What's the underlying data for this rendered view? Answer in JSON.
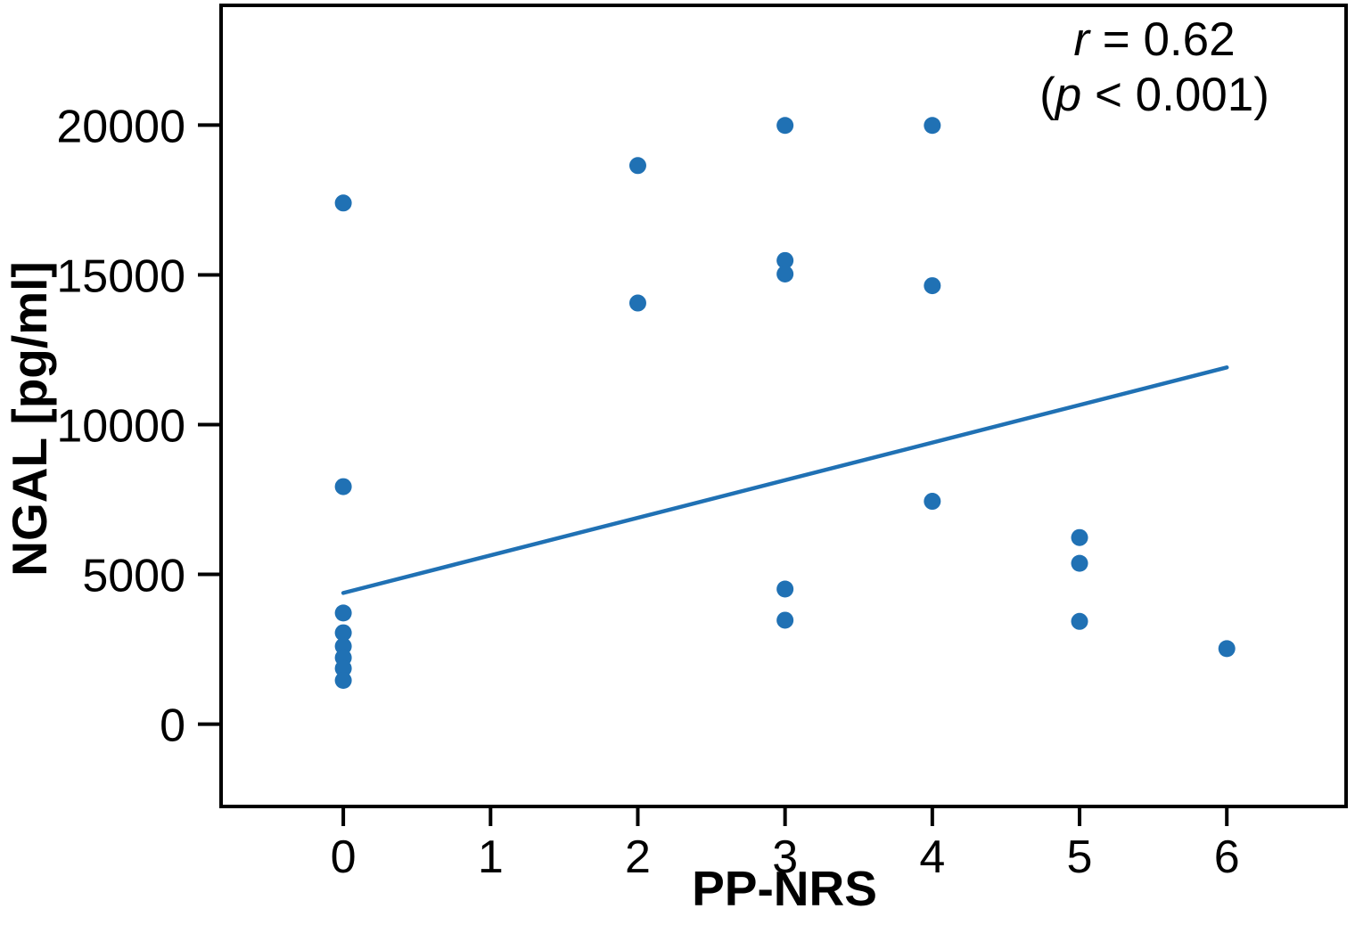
{
  "chart_data": {
    "type": "scatter",
    "title": "",
    "xlabel": "PP-NRS",
    "ylabel": "NGAL [pg/ml]",
    "annotation": {
      "r_symbol": "r",
      "r_rest": " = 0.62",
      "p_open": "(",
      "p_symbol": "p",
      "p_rest": " < 0.001)"
    },
    "xlim": [
      -0.83,
      6.81
    ],
    "ylim": [
      -2750,
      24000
    ],
    "xticks": [
      "0",
      "1",
      "2",
      "3",
      "4",
      "5",
      "6"
    ],
    "xtick_values": [
      0,
      1,
      2,
      3,
      4,
      5,
      6
    ],
    "yticks": [
      "0",
      "5000",
      "10000",
      "15000",
      "20000"
    ],
    "ytick_values": [
      0,
      5000,
      10000,
      15000,
      20000
    ],
    "grid": false,
    "legend": "none",
    "point_color": "#2071B4",
    "line_color": "#2071B4",
    "axis_color": "#000000",
    "points": [
      {
        "x": 0,
        "y": 17400
      },
      {
        "x": 0,
        "y": 7930
      },
      {
        "x": 0,
        "y": 3710
      },
      {
        "x": 0,
        "y": 3050
      },
      {
        "x": 0,
        "y": 2600
      },
      {
        "x": 0,
        "y": 2220
      },
      {
        "x": 0,
        "y": 1860
      },
      {
        "x": 0,
        "y": 1460
      },
      {
        "x": 2,
        "y": 18650
      },
      {
        "x": 2,
        "y": 14060
      },
      {
        "x": 3,
        "y": 19990
      },
      {
        "x": 3,
        "y": 15480
      },
      {
        "x": 3,
        "y": 15030
      },
      {
        "x": 3,
        "y": 4510
      },
      {
        "x": 3,
        "y": 3470
      },
      {
        "x": 4,
        "y": 19990
      },
      {
        "x": 4,
        "y": 14640
      },
      {
        "x": 4,
        "y": 7440
      },
      {
        "x": 5,
        "y": 6230
      },
      {
        "x": 5,
        "y": 5370
      },
      {
        "x": 5,
        "y": 3430
      },
      {
        "x": 6,
        "y": 2520
      }
    ],
    "trendline": {
      "x1": 0,
      "y1": 4380,
      "x2": 6,
      "y2": 11910
    }
  }
}
